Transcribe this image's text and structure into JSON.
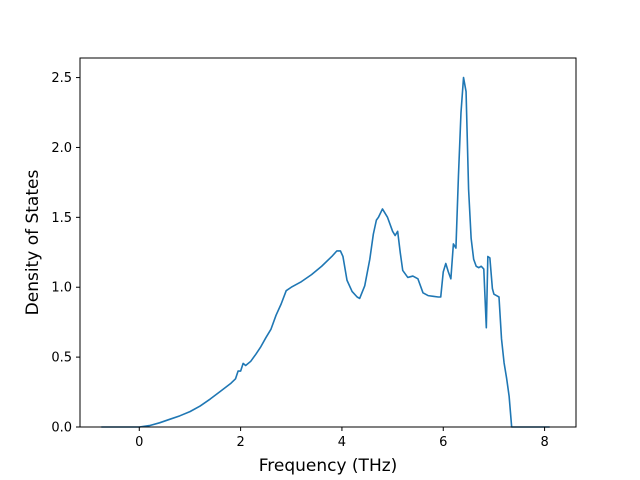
{
  "chart_data": {
    "type": "line",
    "xlabel": "Frequency (THz)",
    "ylabel": "Density of States",
    "xlim": [
      -1.17,
      8.62
    ],
    "ylim": [
      0,
      2.64
    ],
    "x_ticks": [
      0,
      2,
      4,
      6,
      8
    ],
    "x_tick_labels": [
      "0",
      "2",
      "4",
      "6",
      "8"
    ],
    "y_ticks": [
      0.0,
      0.5,
      1.0,
      1.5,
      2.0,
      2.5
    ],
    "y_tick_labels": [
      "0.0",
      "0.5",
      "1.0",
      "1.5",
      "2.0",
      "2.5"
    ],
    "grid": false,
    "colors": {
      "series": "#1f77b4"
    },
    "series": [
      {
        "x": [
          -0.75,
          -0.5,
          -0.25,
          0,
          0.2,
          0.4,
          0.6,
          0.8,
          1.0,
          1.2,
          1.4,
          1.6,
          1.8,
          1.9,
          1.95,
          2.0,
          2.05,
          2.1,
          2.2,
          2.3,
          2.4,
          2.5,
          2.6,
          2.7,
          2.8,
          2.9,
          3.0,
          3.2,
          3.4,
          3.6,
          3.8,
          3.9,
          3.97,
          4.02,
          4.1,
          4.2,
          4.3,
          4.35,
          4.45,
          4.55,
          4.62,
          4.68,
          4.72,
          4.8,
          4.9,
          5.0,
          5.05,
          5.1,
          5.15,
          5.2,
          5.3,
          5.4,
          5.5,
          5.6,
          5.7,
          5.8,
          5.9,
          5.95,
          6.0,
          6.05,
          6.1,
          6.15,
          6.2,
          6.25,
          6.3,
          6.35,
          6.4,
          6.45,
          6.5,
          6.55,
          6.6,
          6.65,
          6.7,
          6.75,
          6.8,
          6.85,
          6.88,
          6.92,
          6.97,
          7.0,
          7.05,
          7.1,
          7.15,
          7.2,
          7.25,
          7.3,
          7.35,
          7.4,
          7.45,
          7.6,
          7.8,
          8.0,
          8.1
        ],
        "values": [
          0,
          0,
          0,
          0,
          0.01,
          0.03,
          0.055,
          0.08,
          0.11,
          0.15,
          0.2,
          0.255,
          0.31,
          0.345,
          0.4,
          0.4,
          0.455,
          0.44,
          0.47,
          0.52,
          0.575,
          0.64,
          0.7,
          0.8,
          0.88,
          0.975,
          1.0,
          1.04,
          1.09,
          1.15,
          1.22,
          1.26,
          1.26,
          1.22,
          1.05,
          0.97,
          0.93,
          0.92,
          1.01,
          1.2,
          1.38,
          1.48,
          1.5,
          1.56,
          1.5,
          1.4,
          1.37,
          1.4,
          1.25,
          1.12,
          1.07,
          1.08,
          1.06,
          0.96,
          0.94,
          0.935,
          0.93,
          0.93,
          1.11,
          1.17,
          1.11,
          1.06,
          1.31,
          1.28,
          1.8,
          2.25,
          2.5,
          2.4,
          1.7,
          1.35,
          1.2,
          1.15,
          1.14,
          1.15,
          1.13,
          0.71,
          1.22,
          1.21,
          0.99,
          0.95,
          0.94,
          0.93,
          0.63,
          0.46,
          0.35,
          0.22,
          0,
          0,
          0,
          0,
          0,
          0,
          0
        ]
      }
    ]
  }
}
